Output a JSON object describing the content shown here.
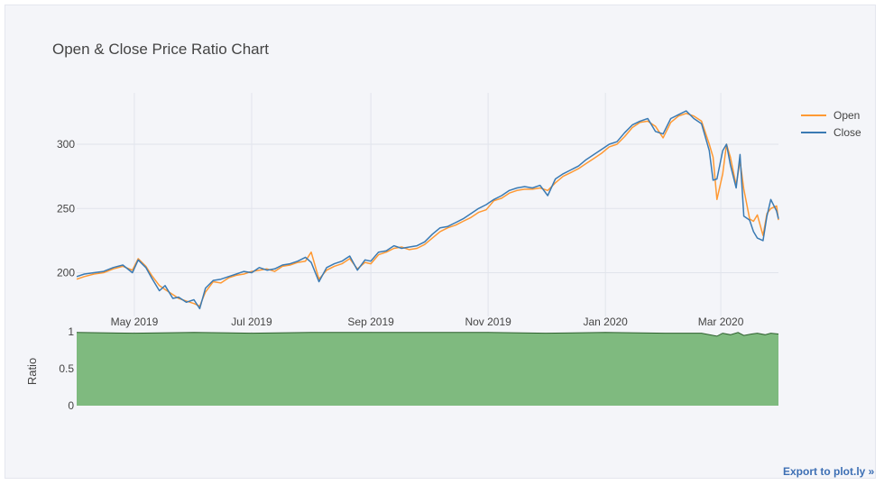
{
  "export_link": "Export to plot.ly »",
  "colors": {
    "open": "#ff9933",
    "close": "#3a7ab3",
    "ratio_fill": "#7fba7f",
    "ratio_line": "#2d5f2d",
    "grid": "#e1e4ec",
    "background": "#f4f5f9"
  },
  "chart_data": {
    "type": "line",
    "title": "Open & Close Price Ratio Chart",
    "x_range": [
      "2019-04-01",
      "2020-03-31"
    ],
    "x_ticks": [
      {
        "date": "2019-05-01",
        "label": "May 2019"
      },
      {
        "date": "2019-07-01",
        "label": "Jul 2019"
      },
      {
        "date": "2019-09-01",
        "label": "Sep 2019"
      },
      {
        "date": "2019-11-01",
        "label": "Nov 2019"
      },
      {
        "date": "2020-01-01",
        "label": "Jan 2020"
      },
      {
        "date": "2020-03-01",
        "label": "Mar 2020"
      }
    ],
    "legend_position": "top-right",
    "grid": true,
    "price": {
      "ylabel": "",
      "ylim": [
        166,
        340
      ],
      "yticks": [
        200,
        250,
        300
      ],
      "series": [
        {
          "name": "Open",
          "color": "#ff9933",
          "points": [
            [
              "2019-04-01",
              195
            ],
            [
              "2019-04-05",
              197
            ],
            [
              "2019-04-10",
              199
            ],
            [
              "2019-04-15",
              200
            ],
            [
              "2019-04-20",
              203
            ],
            [
              "2019-04-25",
              205
            ],
            [
              "2019-04-30",
              202
            ],
            [
              "2019-05-03",
              211
            ],
            [
              "2019-05-07",
              205
            ],
            [
              "2019-05-10",
              198
            ],
            [
              "2019-05-14",
              190
            ],
            [
              "2019-05-17",
              187
            ],
            [
              "2019-05-21",
              183
            ],
            [
              "2019-05-24",
              180
            ],
            [
              "2019-05-28",
              178
            ],
            [
              "2019-06-01",
              176
            ],
            [
              "2019-06-04",
              174
            ],
            [
              "2019-06-07",
              185
            ],
            [
              "2019-06-11",
              193
            ],
            [
              "2019-06-15",
              192
            ],
            [
              "2019-06-19",
              196
            ],
            [
              "2019-06-23",
              198
            ],
            [
              "2019-06-27",
              199
            ],
            [
              "2019-07-01",
              201
            ],
            [
              "2019-07-05",
              202
            ],
            [
              "2019-07-09",
              203
            ],
            [
              "2019-07-13",
              201
            ],
            [
              "2019-07-17",
              205
            ],
            [
              "2019-07-21",
              206
            ],
            [
              "2019-07-25",
              208
            ],
            [
              "2019-07-29",
              209
            ],
            [
              "2019-08-01",
              216
            ],
            [
              "2019-08-05",
              195
            ],
            [
              "2019-08-09",
              202
            ],
            [
              "2019-08-13",
              205
            ],
            [
              "2019-08-17",
              207
            ],
            [
              "2019-08-21",
              211
            ],
            [
              "2019-08-25",
              203
            ],
            [
              "2019-08-29",
              208
            ],
            [
              "2019-09-01",
              207
            ],
            [
              "2019-09-05",
              214
            ],
            [
              "2019-09-09",
              216
            ],
            [
              "2019-09-13",
              219
            ],
            [
              "2019-09-17",
              220
            ],
            [
              "2019-09-21",
              218
            ],
            [
              "2019-09-25",
              219
            ],
            [
              "2019-09-29",
              222
            ],
            [
              "2019-10-03",
              227
            ],
            [
              "2019-10-07",
              232
            ],
            [
              "2019-10-11",
              235
            ],
            [
              "2019-10-15",
              237
            ],
            [
              "2019-10-19",
              240
            ],
            [
              "2019-10-23",
              243
            ],
            [
              "2019-10-27",
              247
            ],
            [
              "2019-10-31",
              249
            ],
            [
              "2019-11-04",
              256
            ],
            [
              "2019-11-08",
              258
            ],
            [
              "2019-11-12",
              262
            ],
            [
              "2019-11-16",
              264
            ],
            [
              "2019-11-20",
              265
            ],
            [
              "2019-11-24",
              265
            ],
            [
              "2019-11-28",
              266
            ],
            [
              "2019-12-02",
              264
            ],
            [
              "2019-12-06",
              270
            ],
            [
              "2019-12-10",
              275
            ],
            [
              "2019-12-14",
              278
            ],
            [
              "2019-12-18",
              281
            ],
            [
              "2019-12-22",
              285
            ],
            [
              "2019-12-26",
              289
            ],
            [
              "2019-12-30",
              293
            ],
            [
              "2020-01-03",
              298
            ],
            [
              "2020-01-07",
              300
            ],
            [
              "2020-01-11",
              306
            ],
            [
              "2020-01-15",
              313
            ],
            [
              "2020-01-19",
              317
            ],
            [
              "2020-01-23",
              318
            ],
            [
              "2020-01-27",
              314
            ],
            [
              "2020-01-31",
              305
            ],
            [
              "2020-02-04",
              317
            ],
            [
              "2020-02-08",
              322
            ],
            [
              "2020-02-12",
              324
            ],
            [
              "2020-02-16",
              322
            ],
            [
              "2020-02-20",
              318
            ],
            [
              "2020-02-24",
              300
            ],
            [
              "2020-02-26",
              290
            ],
            [
              "2020-02-28",
              257
            ],
            [
              "2020-03-02",
              277
            ],
            [
              "2020-03-04",
              300
            ],
            [
              "2020-03-06",
              290
            ],
            [
              "2020-03-09",
              268
            ],
            [
              "2020-03-11",
              287
            ],
            [
              "2020-03-13",
              265
            ],
            [
              "2020-03-16",
              242
            ],
            [
              "2020-03-18",
              240
            ],
            [
              "2020-03-20",
              245
            ],
            [
              "2020-03-23",
              229
            ],
            [
              "2020-03-25",
              246
            ],
            [
              "2020-03-27",
              250
            ],
            [
              "2020-03-30",
              252
            ],
            [
              "2020-03-31",
              241
            ]
          ]
        },
        {
          "name": "Close",
          "color": "#3a7ab3",
          "points": [
            [
              "2019-04-01",
              197
            ],
            [
              "2019-04-05",
              199
            ],
            [
              "2019-04-10",
              200
            ],
            [
              "2019-04-15",
              201
            ],
            [
              "2019-04-20",
              204
            ],
            [
              "2019-04-25",
              206
            ],
            [
              "2019-04-30",
              200
            ],
            [
              "2019-05-03",
              210
            ],
            [
              "2019-05-07",
              204
            ],
            [
              "2019-05-10",
              196
            ],
            [
              "2019-05-14",
              186
            ],
            [
              "2019-05-17",
              190
            ],
            [
              "2019-05-21",
              180
            ],
            [
              "2019-05-24",
              181
            ],
            [
              "2019-05-28",
              177
            ],
            [
              "2019-06-01",
              179
            ],
            [
              "2019-06-04",
              172
            ],
            [
              "2019-06-07",
              188
            ],
            [
              "2019-06-11",
              194
            ],
            [
              "2019-06-15",
              195
            ],
            [
              "2019-06-19",
              197
            ],
            [
              "2019-06-23",
              199
            ],
            [
              "2019-06-27",
              201
            ],
            [
              "2019-07-01",
              200
            ],
            [
              "2019-07-05",
              204
            ],
            [
              "2019-07-09",
              202
            ],
            [
              "2019-07-13",
              203
            ],
            [
              "2019-07-17",
              206
            ],
            [
              "2019-07-21",
              207
            ],
            [
              "2019-07-25",
              209
            ],
            [
              "2019-07-29",
              212
            ],
            [
              "2019-08-01",
              208
            ],
            [
              "2019-08-05",
              193
            ],
            [
              "2019-08-09",
              204
            ],
            [
              "2019-08-13",
              207
            ],
            [
              "2019-08-17",
              209
            ],
            [
              "2019-08-21",
              213
            ],
            [
              "2019-08-25",
              202
            ],
            [
              "2019-08-29",
              210
            ],
            [
              "2019-09-01",
              209
            ],
            [
              "2019-09-05",
              216
            ],
            [
              "2019-09-09",
              217
            ],
            [
              "2019-09-13",
              221
            ],
            [
              "2019-09-17",
              219
            ],
            [
              "2019-09-21",
              220
            ],
            [
              "2019-09-25",
              221
            ],
            [
              "2019-09-29",
              224
            ],
            [
              "2019-10-03",
              230
            ],
            [
              "2019-10-07",
              235
            ],
            [
              "2019-10-11",
              236
            ],
            [
              "2019-10-15",
              239
            ],
            [
              "2019-10-19",
              242
            ],
            [
              "2019-10-23",
              246
            ],
            [
              "2019-10-27",
              250
            ],
            [
              "2019-10-31",
              253
            ],
            [
              "2019-11-04",
              257
            ],
            [
              "2019-11-08",
              260
            ],
            [
              "2019-11-12",
              264
            ],
            [
              "2019-11-16",
              266
            ],
            [
              "2019-11-20",
              267
            ],
            [
              "2019-11-24",
              266
            ],
            [
              "2019-11-28",
              268
            ],
            [
              "2019-12-02",
              260
            ],
            [
              "2019-12-06",
              273
            ],
            [
              "2019-12-10",
              277
            ],
            [
              "2019-12-14",
              280
            ],
            [
              "2019-12-18",
              283
            ],
            [
              "2019-12-22",
              288
            ],
            [
              "2019-12-26",
              292
            ],
            [
              "2019-12-30",
              296
            ],
            [
              "2020-01-03",
              300
            ],
            [
              "2020-01-07",
              302
            ],
            [
              "2020-01-11",
              309
            ],
            [
              "2020-01-15",
              315
            ],
            [
              "2020-01-19",
              318
            ],
            [
              "2020-01-23",
              320
            ],
            [
              "2020-01-27",
              310
            ],
            [
              "2020-01-31",
              308
            ],
            [
              "2020-02-04",
              320
            ],
            [
              "2020-02-08",
              323
            ],
            [
              "2020-02-12",
              326
            ],
            [
              "2020-02-16",
              320
            ],
            [
              "2020-02-20",
              316
            ],
            [
              "2020-02-24",
              295
            ],
            [
              "2020-02-26",
              272
            ],
            [
              "2020-02-28",
              273
            ],
            [
              "2020-03-02",
              295
            ],
            [
              "2020-03-04",
              300
            ],
            [
              "2020-03-06",
              284
            ],
            [
              "2020-03-09",
              266
            ],
            [
              "2020-03-11",
              292
            ],
            [
              "2020-03-13",
              244
            ],
            [
              "2020-03-16",
              241
            ],
            [
              "2020-03-18",
              232
            ],
            [
              "2020-03-20",
              227
            ],
            [
              "2020-03-23",
              225
            ],
            [
              "2020-03-25",
              244
            ],
            [
              "2020-03-27",
              257
            ],
            [
              "2020-03-30",
              248
            ],
            [
              "2020-03-31",
              242
            ]
          ]
        }
      ]
    },
    "ratio": {
      "type": "area",
      "ylabel": "Ratio",
      "ylim": [
        0,
        1
      ],
      "yticks": [
        0,
        0.5,
        1
      ],
      "points": [
        [
          "2019-04-01",
          0.99
        ],
        [
          "2019-05-01",
          0.98
        ],
        [
          "2019-06-01",
          0.99
        ],
        [
          "2019-07-01",
          0.98
        ],
        [
          "2019-08-01",
          0.99
        ],
        [
          "2019-09-01",
          0.99
        ],
        [
          "2019-10-01",
          0.99
        ],
        [
          "2019-11-01",
          0.99
        ],
        [
          "2019-12-01",
          0.98
        ],
        [
          "2020-01-01",
          0.99
        ],
        [
          "2020-02-01",
          0.98
        ],
        [
          "2020-02-20",
          0.98
        ],
        [
          "2020-02-28",
          0.94
        ],
        [
          "2020-03-02",
          0.98
        ],
        [
          "2020-03-06",
          0.96
        ],
        [
          "2020-03-10",
          0.99
        ],
        [
          "2020-03-13",
          0.95
        ],
        [
          "2020-03-17",
          0.97
        ],
        [
          "2020-03-20",
          0.98
        ],
        [
          "2020-03-24",
          0.96
        ],
        [
          "2020-03-27",
          0.98
        ],
        [
          "2020-03-31",
          0.97
        ]
      ]
    }
  }
}
